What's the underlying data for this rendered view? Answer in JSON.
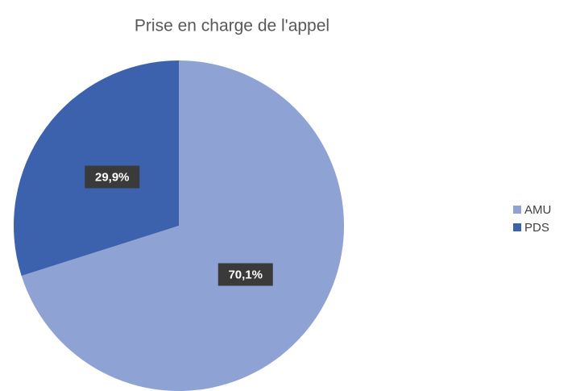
{
  "chart_data": {
    "type": "pie",
    "title": "Prise en charge de l'appel",
    "categories": [
      "AMU",
      "PDS"
    ],
    "values": [
      70.1,
      29.9
    ],
    "value_labels": [
      "70,1%",
      "29,9%"
    ],
    "colors": [
      "#8fa2d4",
      "#3c62ae"
    ],
    "legend": "right"
  }
}
